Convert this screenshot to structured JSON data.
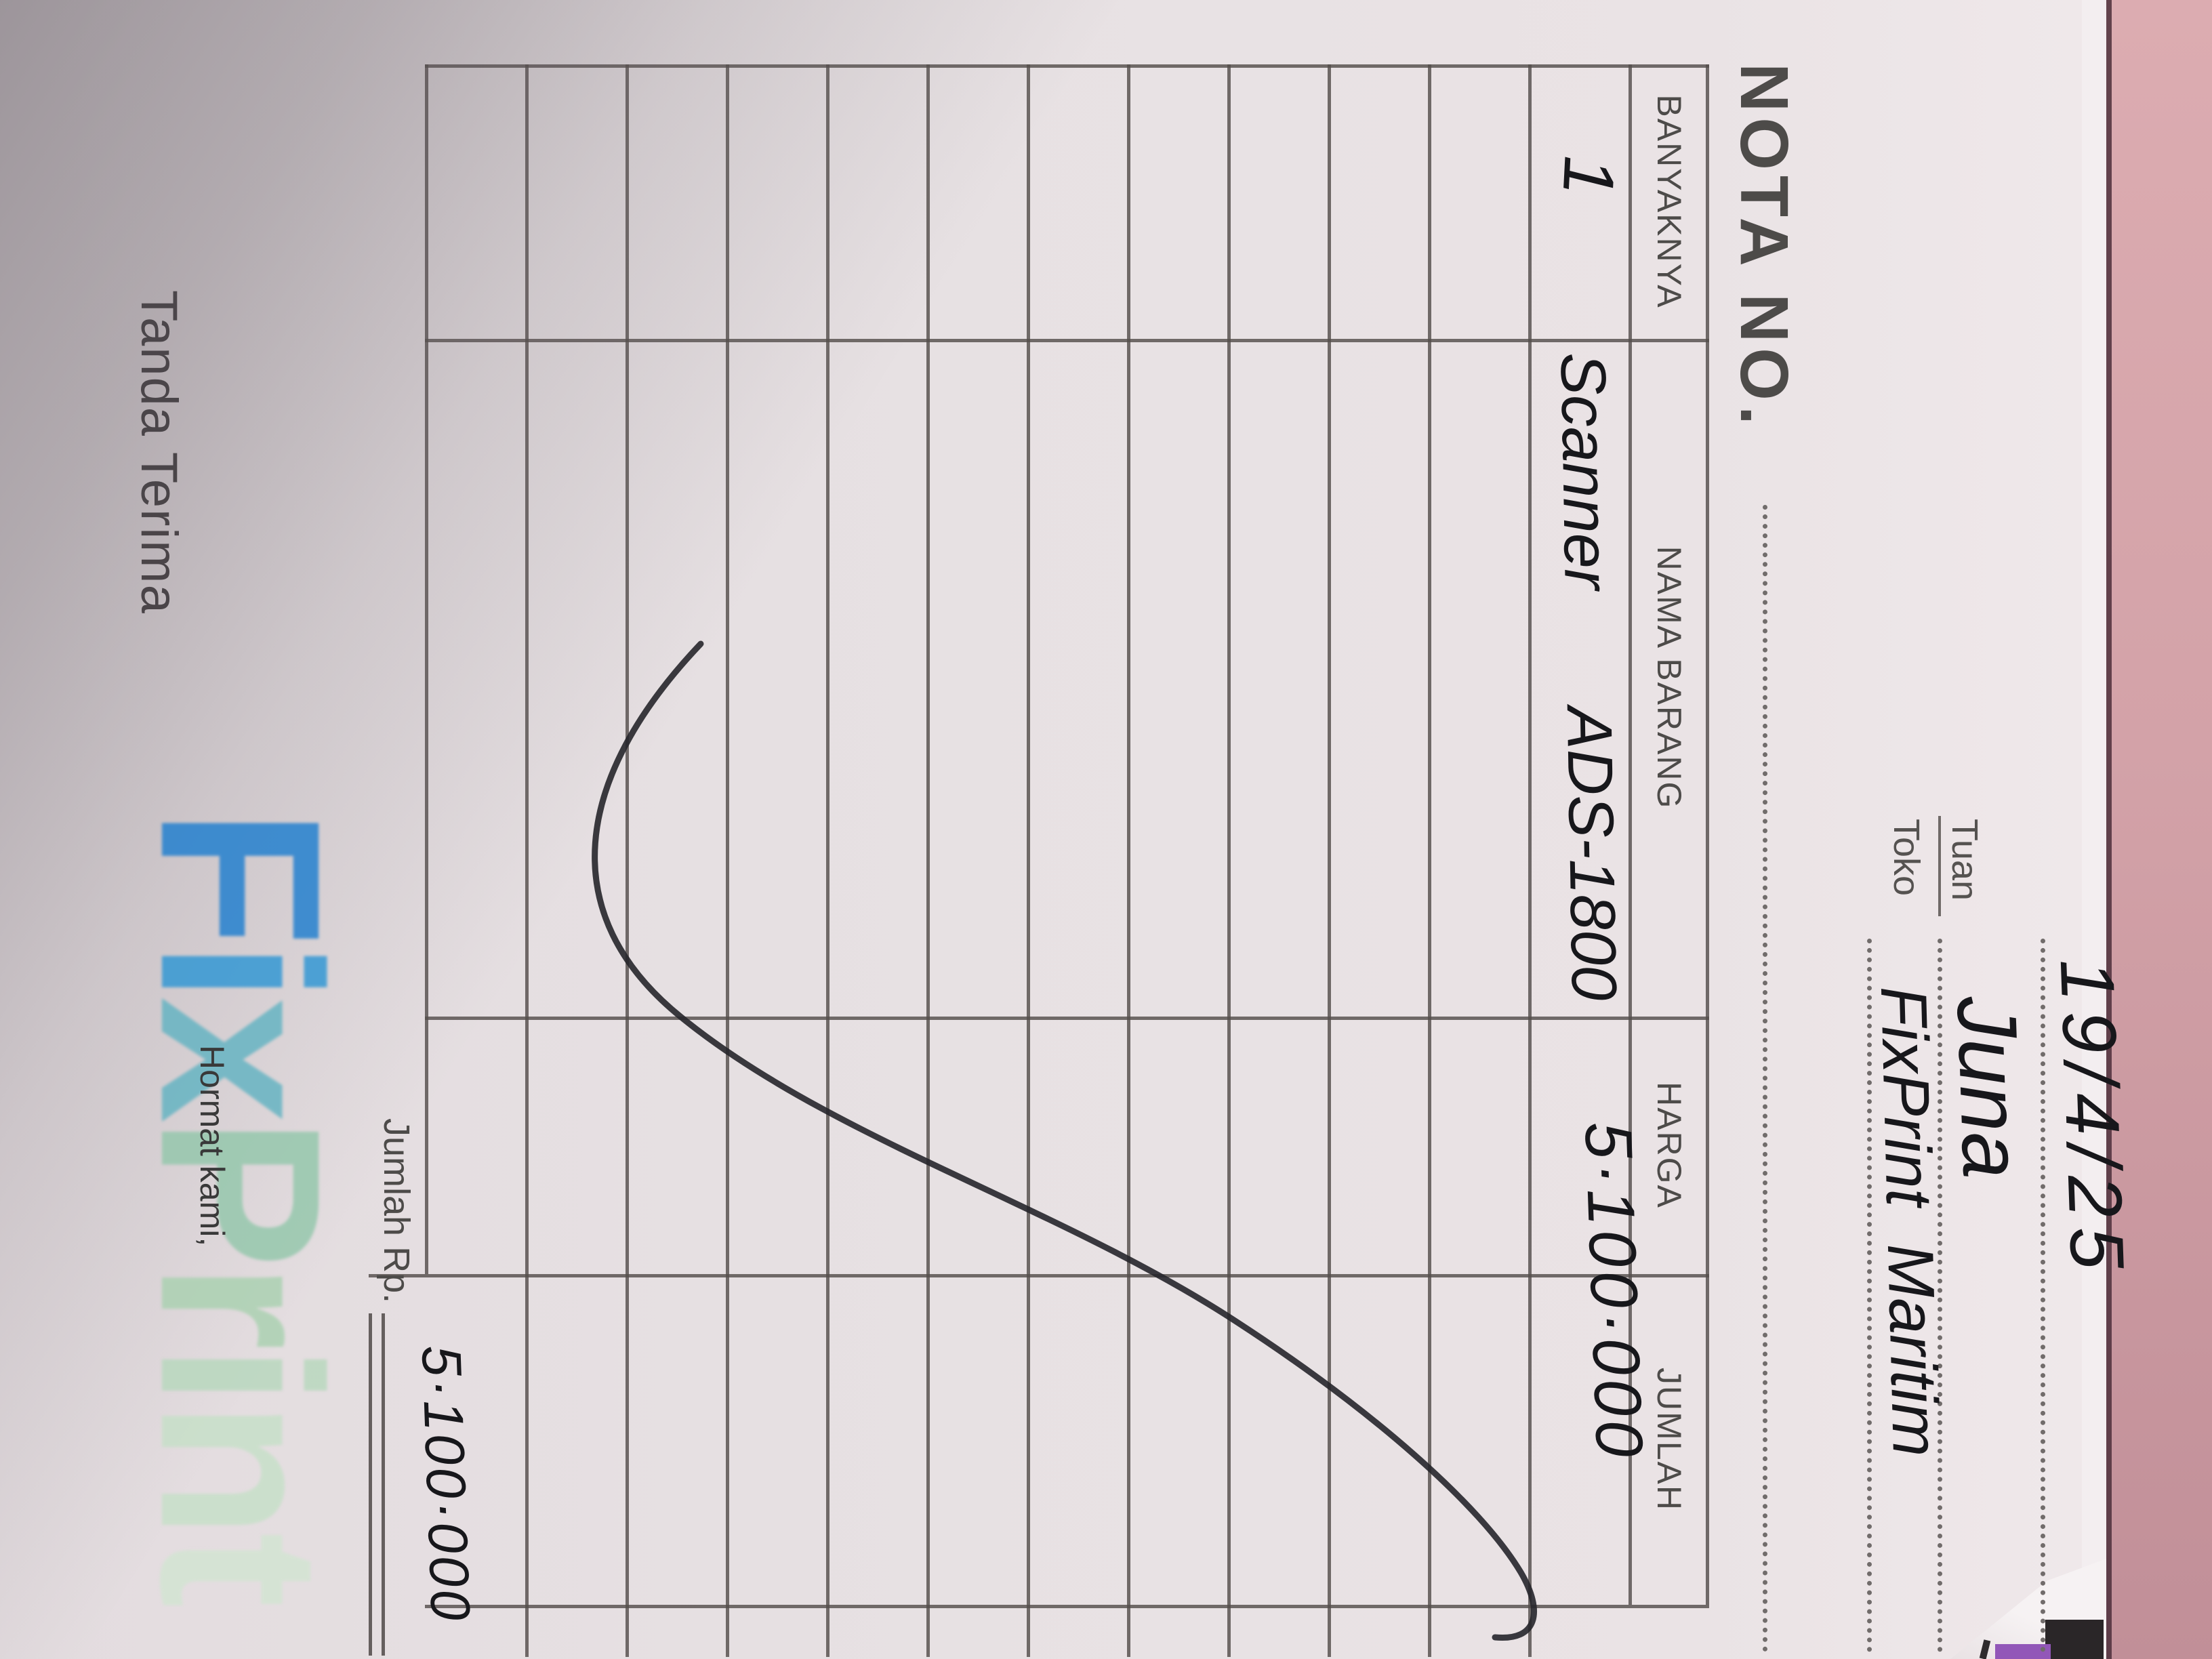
{
  "receipt": {
    "date": "19/4/25",
    "nota_no_label": "NOTA NO.",
    "tuan_label": "Tuan",
    "toko_label": "Toko",
    "tuan_value": "Juna",
    "toko_value": "FixPrint Maritim",
    "table": {
      "headers": [
        "BANYAKNYA",
        "NAMA BARANG",
        "HARGA",
        "JUMLAH"
      ],
      "rows": [
        {
          "banyaknya": "1",
          "nama_barang": "Scanner ADS-1800",
          "harga": "",
          "jumlah": "5·100·000"
        }
      ]
    },
    "total_label": "Jumlah Rp.",
    "total_value": "5·100·000",
    "tanda_terima_label": "Tanda Terima",
    "hormat_kami_label": "Hormat kami,",
    "logo": {
      "name": "FixPrint",
      "letters": [
        {
          "char": "F"
        },
        {
          "char": "i"
        },
        {
          "char": "x"
        },
        {
          "char": "P"
        },
        {
          "char": "r"
        },
        {
          "char": "i"
        },
        {
          "char": "n"
        },
        {
          "char": "t"
        }
      ]
    },
    "colors": {
      "pink_background": "#cf9fa6",
      "paper": "#e7e1e3",
      "grid_line": "#544e4c",
      "handwriting": "#17171b",
      "logo_blue": "#1e7ecf",
      "logo_green": "#9cc9ab",
      "purple_object": "#9257b8"
    }
  }
}
